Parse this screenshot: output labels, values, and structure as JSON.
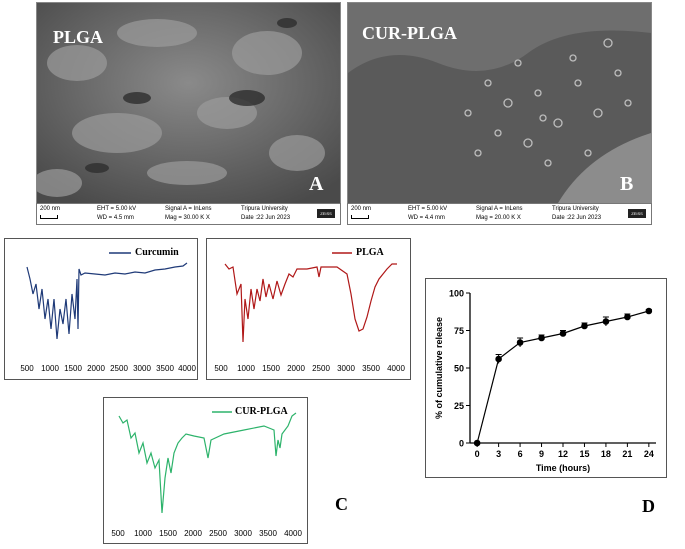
{
  "sem_panels": [
    {
      "tag": "PLGA",
      "letter": "A",
      "scale": "200 nm",
      "eht": "EHT = 5.00 kV",
      "wd": "WD = 4.5 mm",
      "signal": "Signal A = InLens",
      "mag": "Mag = 30.00 K X",
      "inst": "Tripura University",
      "date": "Date :22 Jun 2023",
      "logo": "ZEISS"
    },
    {
      "tag": "CUR-PLGA",
      "letter": "B",
      "scale": "200 nm",
      "eht": "EHT = 5.00 kV",
      "wd": "WD = 4.4 mm",
      "signal": "Signal A = InLens",
      "mag": "Mag = 20.00 K X",
      "inst": "Tripura University",
      "date": "Date :22 Jun 2023",
      "logo": "ZEISS"
    }
  ],
  "ftir_panels": [
    {
      "legend": "Curcumin",
      "color": "#1f3a78",
      "ticks": [
        "500",
        "1000",
        "1500",
        "2000",
        "2500",
        "3000",
        "3500",
        "4000"
      ]
    },
    {
      "legend": "PLGA",
      "color": "#b01818",
      "ticks": [
        "500",
        "1000",
        "1500",
        "2000",
        "2500",
        "3000",
        "3500",
        "4000"
      ]
    },
    {
      "legend": "CUR-PLGA",
      "color": "#2db36b",
      "ticks": [
        "500",
        "1000",
        "1500",
        "2000",
        "2500",
        "3000",
        "3500",
        "4000"
      ]
    }
  ],
  "letters": {
    "c": "C",
    "d": "D"
  },
  "chart_data": {
    "type": "line",
    "xlabel": "Time (hours)",
    "ylabel": "% of cumulative release",
    "x": [
      0,
      3,
      6,
      9,
      12,
      15,
      18,
      21,
      24
    ],
    "values": [
      0,
      56,
      67,
      70,
      73,
      78,
      81,
      84,
      88
    ],
    "errors": [
      0,
      3,
      3,
      2,
      2,
      2,
      3,
      2,
      1
    ],
    "xticks": [
      "0",
      "3",
      "6",
      "9",
      "12",
      "15",
      "18",
      "21",
      "24"
    ],
    "yticks": [
      "0",
      "25",
      "50",
      "75",
      "100"
    ],
    "xlim": [
      -1,
      25
    ],
    "ylim": [
      0,
      100
    ],
    "grid": false,
    "color": "#000000"
  }
}
